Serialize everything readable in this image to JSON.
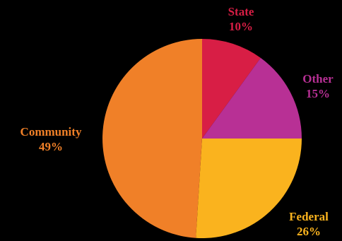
{
  "chart_data": {
    "type": "pie",
    "title": "",
    "start_angle_deg": 0,
    "direction": "clockwise",
    "slices": [
      {
        "label": "State",
        "value": 10,
        "display": "10%",
        "color": "#d81e45"
      },
      {
        "label": "Other",
        "value": 15,
        "display": "15%",
        "color": "#b83095"
      },
      {
        "label": "Federal",
        "value": 26,
        "display": "26%",
        "color": "#fab31e"
      },
      {
        "label": "Community",
        "value": 49,
        "display": "49%",
        "color": "#f08028"
      }
    ],
    "label_position": "outside",
    "background": "#000000"
  }
}
